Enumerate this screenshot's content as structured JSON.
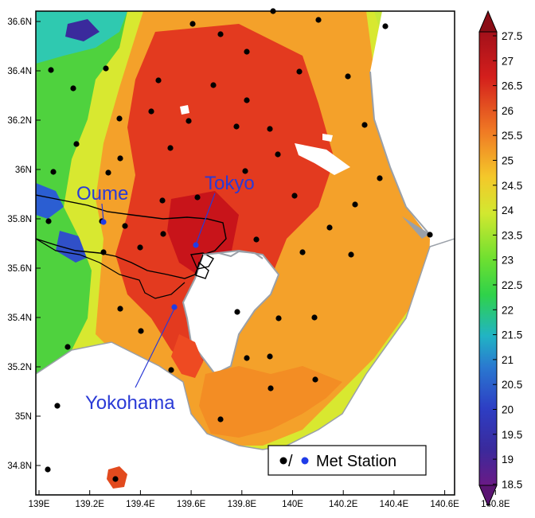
{
  "map": {
    "x_axis_labels": [
      "139E",
      "139.2E",
      "139.4E",
      "139.6E",
      "139.8E",
      "140E",
      "140.2E",
      "140.4E",
      "140.6E",
      "140.8E"
    ],
    "y_axis_labels": [
      "36.6N",
      "36.4N",
      "36.2N",
      "36N",
      "35.8N",
      "35.6N",
      "35.4N",
      "35.2N",
      "35N",
      "34.8N"
    ],
    "cities": [
      {
        "name": "Oume"
      },
      {
        "name": "Tokyo"
      },
      {
        "name": "Yokohama"
      }
    ],
    "legend": {
      "label": "Met Station",
      "separator": "/",
      "colors": [
        "#000000",
        "#1f3ce8"
      ]
    }
  },
  "colorbar": {
    "tick_labels": [
      "27.5",
      "27",
      "26.5",
      "26",
      "25.5",
      "25",
      "24.5",
      "24",
      "23.5",
      "23",
      "22.5",
      "22",
      "21.5",
      "21",
      "20.5",
      "20",
      "19.5",
      "19",
      "18.5"
    ],
    "colors": {
      "18.5": "#6a1a86",
      "20": "#2d3ec4",
      "21": "#21b4c4",
      "22": "#2fd24a",
      "23": "#6fe030",
      "24": "#d2e830",
      "25": "#f4c82a",
      "26": "#f07a24",
      "27": "#d41f1c",
      "27.5": "#a3101a"
    }
  }
}
